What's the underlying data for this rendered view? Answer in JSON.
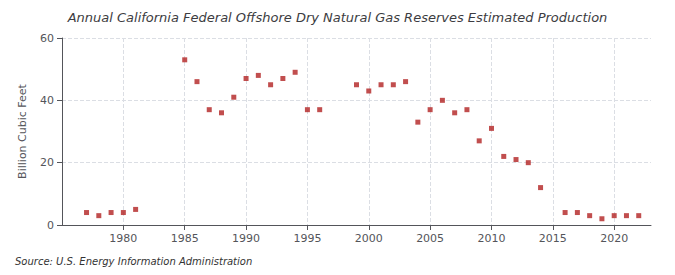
{
  "chart_data": {
    "type": "scatter",
    "title": "Annual California Federal Offshore Dry Natural Gas Reserves Estimated Production",
    "ylabel": "Billion Cubic Feet",
    "annotations": [
      "Source: U.S. Energy Information Administration"
    ],
    "x": [
      1977,
      1978,
      1979,
      1980,
      1981,
      1985,
      1986,
      1987,
      1988,
      1989,
      1990,
      1991,
      1992,
      1993,
      1994,
      1995,
      1996,
      1999,
      2000,
      2001,
      2002,
      2003,
      2004,
      2005,
      2006,
      2007,
      2008,
      2009,
      2010,
      2011,
      2012,
      2013,
      2014,
      2016,
      2017,
      2018,
      2019,
      2020,
      2021,
      2022
    ],
    "values": [
      4,
      3,
      4,
      4,
      5,
      53,
      46,
      37,
      36,
      41,
      47,
      48,
      45,
      47,
      49,
      37,
      37,
      45,
      43,
      45,
      45,
      46,
      33,
      37,
      40,
      36,
      37,
      27,
      31,
      22,
      21,
      20,
      12,
      4,
      4,
      3,
      2,
      3,
      3,
      3
    ],
    "color": "#b22222",
    "marker": "square",
    "xlim": [
      1975,
      2023
    ],
    "xticks": [
      1980,
      1985,
      1990,
      1995,
      2000,
      2005,
      2010,
      2015,
      2020
    ],
    "ylim": [
      0,
      60
    ],
    "yticks": [
      0,
      20,
      40,
      60
    ],
    "grid": true
  }
}
